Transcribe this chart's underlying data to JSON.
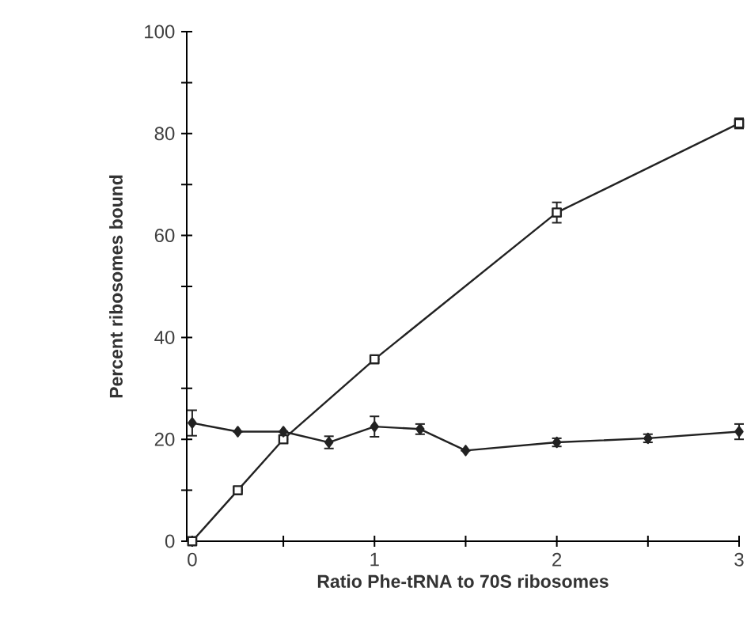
{
  "chart_data": {
    "type": "line",
    "xlabel": "Ratio Phe-tRNA to 70S ribosomes",
    "ylabel": "Percent ribosomes bound",
    "xlim": [
      -0.03,
      3
    ],
    "ylim": [
      0,
      100
    ],
    "xticks": [
      0,
      {
        "value": 0.5,
        "label": null
      },
      1,
      {
        "value": 1.5,
        "label": null
      },
      2,
      {
        "value": 2.5,
        "label": null
      },
      3
    ],
    "yticks": [
      0,
      {
        "value": 10,
        "label": null
      },
      20,
      {
        "value": 30,
        "label": null
      },
      40,
      {
        "value": 50,
        "label": null
      },
      60,
      {
        "value": 70,
        "label": null
      },
      80,
      {
        "value": 90,
        "label": null
      },
      100
    ],
    "grid": false,
    "line_style": "solid",
    "series": [
      {
        "color": "#222222",
        "marker": "square",
        "x": [
          0,
          0.25,
          0.5,
          1,
          2,
          3
        ],
        "values": [
          0,
          10,
          20,
          35.7,
          64.5,
          82
        ],
        "errors": [
          null,
          null,
          null,
          null,
          2,
          1
        ]
      },
      {
        "color": "#222222",
        "marker": "diamond",
        "x": [
          0,
          0.25,
          0.5,
          0.75,
          1,
          1.25,
          1.5,
          2,
          2.5,
          3
        ],
        "values": [
          23.2,
          21.5,
          21.5,
          19.4,
          22.5,
          22,
          17.8,
          19.4,
          20.2,
          21.5
        ],
        "errors": [
          2.5,
          null,
          null,
          1.2,
          2,
          1,
          null,
          0.8,
          0.8,
          1.5
        ]
      }
    ]
  }
}
